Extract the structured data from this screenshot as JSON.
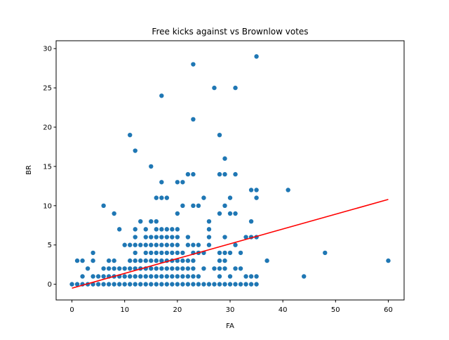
{
  "chart_data": {
    "type": "scatter",
    "title": "Free kicks against vs Brownlow votes",
    "xlabel": "FA",
    "ylabel": "BR",
    "xlim": [
      -3,
      63
    ],
    "ylim": [
      -2,
      31
    ],
    "xticks": [
      0,
      10,
      20,
      30,
      40,
      50,
      60
    ],
    "yticks": [
      0,
      5,
      10,
      15,
      20,
      25,
      30
    ],
    "grid": false,
    "legend": "none",
    "colors": {
      "points": "#1f77b4",
      "fit_line": "#ff0000"
    },
    "series": [
      {
        "kind": "points",
        "points": [
          [
            0,
            0
          ],
          [
            1,
            0
          ],
          [
            2,
            0
          ],
          [
            3,
            0
          ],
          [
            4,
            0
          ],
          [
            5,
            0
          ],
          [
            6,
            0
          ],
          [
            7,
            0
          ],
          [
            8,
            0
          ],
          [
            9,
            0
          ],
          [
            10,
            0
          ],
          [
            11,
            0
          ],
          [
            12,
            0
          ],
          [
            13,
            0
          ],
          [
            14,
            0
          ],
          [
            15,
            0
          ],
          [
            16,
            0
          ],
          [
            17,
            0
          ],
          [
            18,
            0
          ],
          [
            19,
            0
          ],
          [
            20,
            0
          ],
          [
            21,
            0
          ],
          [
            22,
            0
          ],
          [
            23,
            0
          ],
          [
            24,
            0
          ],
          [
            25,
            0
          ],
          [
            26,
            0
          ],
          [
            27,
            0
          ],
          [
            28,
            0
          ],
          [
            29,
            0
          ],
          [
            30,
            0
          ],
          [
            31,
            0
          ],
          [
            32,
            0
          ],
          [
            33,
            0
          ],
          [
            34,
            0
          ],
          [
            35,
            0
          ],
          [
            1,
            3
          ],
          [
            2,
            1
          ],
          [
            2,
            3
          ],
          [
            3,
            2
          ],
          [
            4,
            1
          ],
          [
            4,
            3
          ],
          [
            4,
            4
          ],
          [
            5,
            1
          ],
          [
            6,
            1
          ],
          [
            6,
            2
          ],
          [
            7,
            1
          ],
          [
            7,
            2
          ],
          [
            7,
            3
          ],
          [
            8,
            1
          ],
          [
            8,
            2
          ],
          [
            8,
            3
          ],
          [
            9,
            1
          ],
          [
            9,
            2
          ],
          [
            10,
            1
          ],
          [
            10,
            2
          ],
          [
            10,
            5
          ],
          [
            11,
            1
          ],
          [
            11,
            2
          ],
          [
            11,
            3
          ],
          [
            11,
            5
          ],
          [
            12,
            1
          ],
          [
            12,
            2
          ],
          [
            12,
            3
          ],
          [
            12,
            4
          ],
          [
            12,
            5
          ],
          [
            12,
            6
          ],
          [
            12,
            7
          ],
          [
            13,
            1
          ],
          [
            13,
            2
          ],
          [
            13,
            3
          ],
          [
            13,
            5
          ],
          [
            13,
            8
          ],
          [
            14,
            1
          ],
          [
            14,
            2
          ],
          [
            14,
            3
          ],
          [
            14,
            4
          ],
          [
            14,
            5
          ],
          [
            14,
            6
          ],
          [
            14,
            7
          ],
          [
            15,
            1
          ],
          [
            15,
            2
          ],
          [
            15,
            3
          ],
          [
            15,
            4
          ],
          [
            15,
            5
          ],
          [
            15,
            6
          ],
          [
            15,
            8
          ],
          [
            16,
            1
          ],
          [
            16,
            2
          ],
          [
            16,
            3
          ],
          [
            16,
            4
          ],
          [
            16,
            5
          ],
          [
            16,
            6
          ],
          [
            16,
            7
          ],
          [
            16,
            8
          ],
          [
            16,
            11
          ],
          [
            17,
            1
          ],
          [
            17,
            2
          ],
          [
            17,
            3
          ],
          [
            17,
            4
          ],
          [
            17,
            5
          ],
          [
            17,
            6
          ],
          [
            17,
            7
          ],
          [
            17,
            11
          ],
          [
            17,
            13
          ],
          [
            18,
            1
          ],
          [
            18,
            2
          ],
          [
            18,
            3
          ],
          [
            18,
            4
          ],
          [
            18,
            5
          ],
          [
            18,
            6
          ],
          [
            18,
            7
          ],
          [
            18,
            11
          ],
          [
            19,
            1
          ],
          [
            19,
            2
          ],
          [
            19,
            3
          ],
          [
            19,
            4
          ],
          [
            19,
            5
          ],
          [
            19,
            6
          ],
          [
            19,
            7
          ],
          [
            20,
            1
          ],
          [
            20,
            2
          ],
          [
            20,
            3
          ],
          [
            20,
            4
          ],
          [
            20,
            5
          ],
          [
            20,
            6
          ],
          [
            20,
            7
          ],
          [
            20,
            9
          ],
          [
            20,
            13
          ],
          [
            21,
            1
          ],
          [
            21,
            2
          ],
          [
            21,
            3
          ],
          [
            21,
            4
          ],
          [
            21,
            10
          ],
          [
            21,
            13
          ],
          [
            22,
            1
          ],
          [
            22,
            2
          ],
          [
            22,
            3
          ],
          [
            22,
            5
          ],
          [
            22,
            6
          ],
          [
            22,
            14
          ],
          [
            23,
            1
          ],
          [
            23,
            2
          ],
          [
            23,
            3
          ],
          [
            23,
            4
          ],
          [
            23,
            5
          ],
          [
            23,
            10
          ],
          [
            23,
            14
          ],
          [
            24,
            1
          ],
          [
            24,
            4
          ],
          [
            24,
            5
          ],
          [
            24,
            10
          ],
          [
            25,
            2
          ],
          [
            25,
            4
          ],
          [
            25,
            11
          ],
          [
            26,
            5
          ],
          [
            26,
            6
          ],
          [
            26,
            7
          ],
          [
            26,
            8
          ],
          [
            27,
            2
          ],
          [
            28,
            1
          ],
          [
            28,
            2
          ],
          [
            28,
            3
          ],
          [
            28,
            4
          ],
          [
            28,
            9
          ],
          [
            28,
            14
          ],
          [
            29,
            2
          ],
          [
            29,
            3
          ],
          [
            29,
            4
          ],
          [
            29,
            6
          ],
          [
            29,
            10
          ],
          [
            29,
            14
          ],
          [
            30,
            1
          ],
          [
            30,
            4
          ],
          [
            30,
            9
          ],
          [
            30,
            11
          ],
          [
            31,
            2
          ],
          [
            31,
            5
          ],
          [
            31,
            9
          ],
          [
            31,
            14
          ],
          [
            32,
            2
          ],
          [
            32,
            4
          ],
          [
            33,
            1
          ],
          [
            33,
            6
          ],
          [
            34,
            1
          ],
          [
            34,
            6
          ],
          [
            34,
            8
          ],
          [
            34,
            12
          ],
          [
            35,
            1
          ],
          [
            35,
            6
          ],
          [
            35,
            11
          ],
          [
            35,
            12
          ],
          [
            37,
            3
          ],
          [
            41,
            12
          ],
          [
            44,
            1
          ],
          [
            48,
            4
          ],
          [
            60,
            3
          ],
          [
            6,
            10
          ],
          [
            8,
            9
          ],
          [
            9,
            7
          ],
          [
            11,
            19
          ],
          [
            12,
            17
          ],
          [
            15,
            15
          ],
          [
            17,
            24
          ],
          [
            23,
            21
          ],
          [
            23,
            28
          ],
          [
            27,
            25
          ],
          [
            28,
            19
          ],
          [
            29,
            16
          ],
          [
            31,
            25
          ],
          [
            35,
            29
          ]
        ]
      },
      {
        "kind": "fit_line",
        "from": [
          0,
          -0.5
        ],
        "to": [
          60,
          10.8
        ]
      }
    ]
  }
}
